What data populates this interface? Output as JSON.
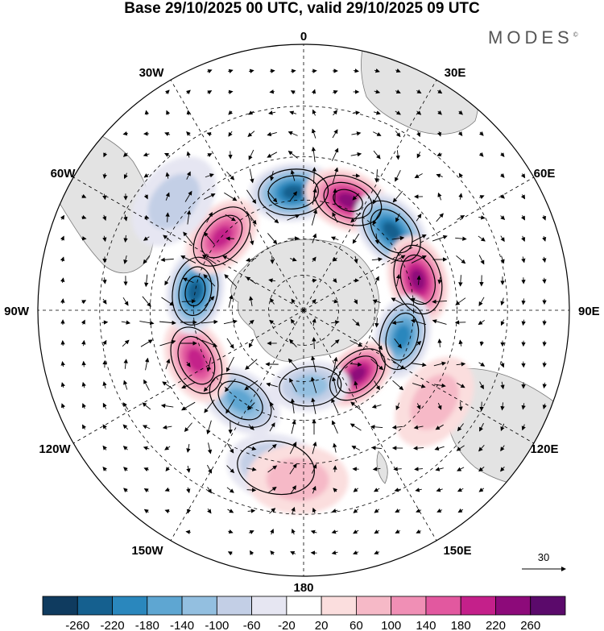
{
  "title": "Base 29/10/2025 00 UTC, valid 29/10/2025 09 UTC",
  "brand": "MODES",
  "brand_mark": "©",
  "lon_labels": {
    "n": "0",
    "nne": "30E",
    "ene": "60E",
    "e": "90E",
    "ese": "120E",
    "sse": "150E",
    "s": "180",
    "ssw": "150W",
    "wsw": "120W",
    "w": "90W",
    "wnw": "60W",
    "nnw": "30W"
  },
  "vector_reference": "30",
  "colorbar": {
    "colors": [
      "#0f3b5f",
      "#15608f",
      "#2a87bd",
      "#5ea6d2",
      "#93bfe0",
      "#c3cfe6",
      "#e6e6f2",
      "#ffffff",
      "#fbdede",
      "#f6b9c7",
      "#f08fb5",
      "#e2589f",
      "#c4208a",
      "#8d0a7a",
      "#5b0a6b"
    ],
    "labels": [
      "-260",
      "-220",
      "-180",
      "-140",
      "-100",
      "-60",
      "-20",
      "20",
      "60",
      "100",
      "140",
      "180",
      "220",
      "260"
    ]
  },
  "anomaly_centers": [
    {
      "name": "neg-30w-north",
      "lon": -5,
      "lat": -42,
      "value": -220,
      "sign": "negative"
    },
    {
      "name": "pos-30e-north",
      "lon": 22,
      "lat": -42,
      "value": 240,
      "sign": "positive"
    },
    {
      "name": "neg-45e",
      "lon": 48,
      "lat": -42,
      "value": -230,
      "sign": "negative"
    },
    {
      "name": "pos-70e",
      "lon": 75,
      "lat": -42,
      "value": 230,
      "sign": "positive"
    },
    {
      "name": "neg-100e",
      "lon": 105,
      "lat": -48,
      "value": -200,
      "sign": "negative"
    },
    {
      "name": "pos-140e",
      "lon": 140,
      "lat": -55,
      "value": 220,
      "sign": "positive"
    },
    {
      "name": "neg-170e",
      "lon": 175,
      "lat": -58,
      "value": -100,
      "sign": "negative"
    },
    {
      "name": "neg-165w",
      "lon": -170,
      "lat": -28,
      "value": -120,
      "sign": "negative"
    },
    {
      "name": "pos-175w",
      "lon": -178,
      "lat": -25,
      "value": 80,
      "sign": "positive"
    },
    {
      "name": "neg-145w",
      "lon": -145,
      "lat": -45,
      "value": -160,
      "sign": "negative"
    },
    {
      "name": "pos-115w",
      "lon": -115,
      "lat": -42,
      "value": 210,
      "sign": "positive"
    },
    {
      "name": "neg-80w",
      "lon": -80,
      "lat": -45,
      "value": -250,
      "sign": "negative"
    },
    {
      "name": "pos-50w",
      "lon": -48,
      "lat": -45,
      "value": 190,
      "sign": "positive"
    },
    {
      "name": "neg-40w-outer",
      "lon": -50,
      "lat": -25,
      "value": -70,
      "sign": "negative"
    },
    {
      "name": "pos-120e-outer",
      "lon": 125,
      "lat": -28,
      "value": 90,
      "sign": "positive"
    }
  ]
}
